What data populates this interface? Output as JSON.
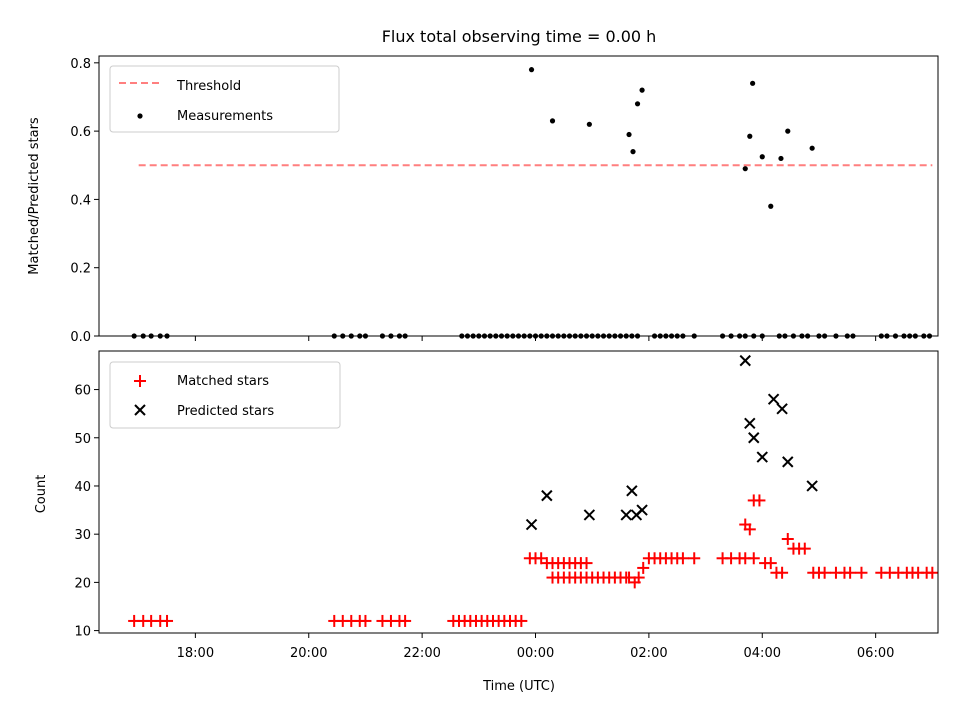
{
  "colors": {
    "threshold": "#ff7f7f",
    "measurements": "#000000",
    "matched": "#ff0000",
    "predicted": "#000000"
  },
  "chart_data": [
    {
      "type": "scatter",
      "title": "Flux total observing time = 0.00 h",
      "xlabel": "",
      "ylabel": "Matched/Predicted stars",
      "ylim": [
        0,
        0.82
      ],
      "yticks": [
        0.0,
        0.2,
        0.4,
        0.6,
        0.8
      ],
      "ytick_labels": [
        "0.0",
        "0.2",
        "0.4",
        "0.6",
        "0.8"
      ],
      "xlim": [
        16.3,
        31.1
      ],
      "x_units": "hours since 00:00 UTC on the first day (values > 24 are next day)",
      "grid": false,
      "legend": {
        "placement": "upper-left",
        "entries": [
          "Threshold",
          "Measurements"
        ]
      },
      "series": [
        {
          "name": "Threshold",
          "kind": "dashed-line",
          "x": [
            17.0,
            31.0
          ],
          "y": [
            0.5,
            0.5
          ]
        },
        {
          "name": "Measurements",
          "kind": "dots",
          "x": [
            16.92,
            17.08,
            17.22,
            17.38,
            17.5,
            20.45,
            20.6,
            20.75,
            20.9,
            21.0,
            21.3,
            21.45,
            21.6,
            21.7,
            22.7,
            22.8,
            22.9,
            23.0,
            23.1,
            23.2,
            23.3,
            23.4,
            23.5,
            23.6,
            23.7,
            23.8,
            23.9,
            24.0,
            24.1,
            24.2,
            24.3,
            24.4,
            24.5,
            24.6,
            24.7,
            24.8,
            24.9,
            25.0,
            25.1,
            25.2,
            25.3,
            25.4,
            25.5,
            25.6,
            25.7,
            25.8,
            26.1,
            26.2,
            26.3,
            26.4,
            26.5,
            26.6,
            26.8,
            27.3,
            27.45,
            27.6,
            27.7,
            27.85,
            28.0,
            28.3,
            28.4,
            28.55,
            28.7,
            28.8,
            29.0,
            29.1,
            29.3,
            29.5,
            29.6,
            30.1,
            30.2,
            30.35,
            30.5,
            30.6,
            30.7,
            30.85,
            30.95,
            23.93,
            24.3,
            24.95,
            25.65,
            25.72,
            25.8,
            25.88,
            27.7,
            27.78,
            27.83,
            28.0,
            28.15,
            28.33,
            28.45,
            28.88
          ],
          "y": [
            0,
            0,
            0,
            0,
            0,
            0,
            0,
            0,
            0,
            0,
            0,
            0,
            0,
            0,
            0,
            0,
            0,
            0,
            0,
            0,
            0,
            0,
            0,
            0,
            0,
            0,
            0,
            0,
            0,
            0,
            0,
            0,
            0,
            0,
            0,
            0,
            0,
            0,
            0,
            0,
            0,
            0,
            0,
            0,
            0,
            0,
            0,
            0,
            0,
            0,
            0,
            0,
            0,
            0,
            0,
            0,
            0,
            0,
            0,
            0,
            0,
            0,
            0,
            0,
            0,
            0,
            0,
            0,
            0,
            0,
            0,
            0,
            0,
            0,
            0,
            0,
            0,
            0.78,
            0.63,
            0.62,
            0.59,
            0.54,
            0.68,
            0.72,
            0.49,
            0.585,
            0.74,
            0.525,
            0.38,
            0.52,
            0.6,
            0.55
          ]
        }
      ]
    },
    {
      "type": "scatter",
      "title": "",
      "xlabel": "Time (UTC)",
      "ylabel": "Count",
      "ylim": [
        9.5,
        68
      ],
      "yticks": [
        10,
        20,
        30,
        40,
        50,
        60
      ],
      "ytick_labels": [
        "10",
        "20",
        "30",
        "40",
        "50",
        "60"
      ],
      "xlim": [
        16.3,
        31.1
      ],
      "xticks": [
        18,
        20,
        22,
        24,
        26,
        28,
        30
      ],
      "xtick_labels": [
        "18:00",
        "20:00",
        "22:00",
        "00:00",
        "02:00",
        "04:00",
        "06:00"
      ],
      "grid": false,
      "legend": {
        "placement": "upper-left",
        "entries": [
          "Matched stars",
          "Predicted stars"
        ]
      },
      "series": [
        {
          "name": "Matched stars",
          "marker": "plus",
          "x": [
            16.92,
            17.08,
            17.22,
            17.38,
            17.5,
            20.45,
            20.6,
            20.75,
            20.9,
            21.0,
            21.3,
            21.45,
            21.6,
            21.7,
            22.55,
            22.65,
            22.75,
            22.85,
            22.95,
            23.05,
            23.15,
            23.25,
            23.35,
            23.45,
            23.55,
            23.65,
            23.75,
            23.9,
            24.0,
            24.1,
            24.2,
            24.3,
            24.4,
            24.5,
            24.6,
            24.7,
            24.8,
            24.9,
            24.3,
            24.4,
            24.5,
            24.6,
            24.7,
            24.8,
            24.9,
            25.0,
            25.1,
            25.2,
            25.3,
            25.4,
            25.5,
            25.6,
            25.65,
            25.75,
            25.82,
            25.9,
            26.0,
            26.1,
            26.2,
            26.3,
            26.4,
            26.5,
            26.6,
            26.8,
            27.3,
            27.45,
            27.6,
            27.7,
            27.85,
            27.7,
            27.78,
            27.85,
            27.95,
            28.05,
            28.15,
            28.25,
            28.35,
            28.45,
            28.55,
            28.65,
            28.75,
            28.9,
            29.0,
            29.1,
            29.3,
            29.45,
            29.55,
            29.75,
            30.1,
            30.25,
            30.4,
            30.55,
            30.65,
            30.75,
            30.9,
            31.0
          ],
          "y": [
            12,
            12,
            12,
            12,
            12,
            12,
            12,
            12,
            12,
            12,
            12,
            12,
            12,
            12,
            12,
            12,
            12,
            12,
            12,
            12,
            12,
            12,
            12,
            12,
            12,
            12,
            12,
            25,
            25,
            25,
            24,
            24,
            24,
            24,
            24,
            24,
            24,
            24,
            21,
            21,
            21,
            21,
            21,
            21,
            21,
            21,
            21,
            21,
            21,
            21,
            21,
            21,
            21,
            20,
            21,
            23,
            25,
            25,
            25,
            25,
            25,
            25,
            25,
            25,
            25,
            25,
            25,
            25,
            25,
            32,
            31,
            37,
            37,
            24,
            24,
            22,
            22,
            29,
            27,
            27,
            27,
            22,
            22,
            22,
            22,
            22,
            22,
            22,
            22,
            22,
            22,
            22,
            22,
            22,
            22,
            22
          ]
        },
        {
          "name": "Predicted stars",
          "marker": "x",
          "x": [
            23.93,
            24.2,
            24.95,
            25.6,
            25.7,
            25.78,
            25.88,
            27.7,
            27.78,
            27.85,
            28.0,
            28.2,
            28.35,
            28.45,
            28.88
          ],
          "y": [
            32,
            38,
            34,
            34,
            39,
            34,
            35,
            66,
            53,
            50,
            46,
            58,
            56,
            45,
            40
          ]
        }
      ]
    }
  ]
}
